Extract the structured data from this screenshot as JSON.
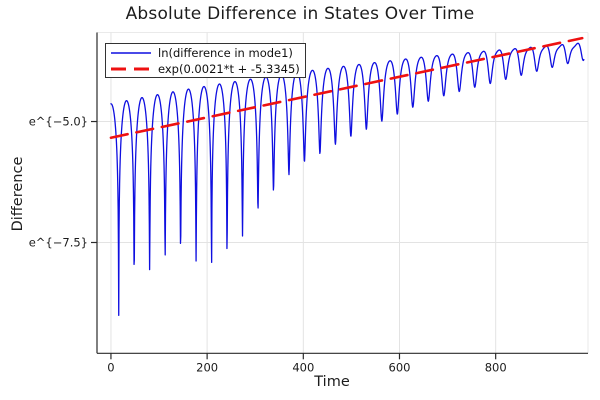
{
  "title": "Absolute Difference in States Over Time",
  "axes": {
    "xlabel": "Time",
    "ylabel": "Difference"
  },
  "legend": {
    "position": "top-left",
    "items": [
      {
        "label": "ln(difference in mode1)",
        "color": "#0f0fe0",
        "style": "solid"
      },
      {
        "label": "exp(0.0021*t + -5.3345)",
        "color": "#ee1111",
        "style": "dashed"
      }
    ]
  },
  "chart_data": {
    "type": "line",
    "title": "Absolute Difference in States Over Time",
    "xlabel": "Time",
    "ylabel": "Difference",
    "x_ticks": [
      0,
      200,
      400,
      600,
      800
    ],
    "y_ticks": [
      {
        "label": "e^{−5.0}",
        "value_ln": -5.0
      },
      {
        "label": "e^{−7.5}",
        "value_ln": -7.5
      }
    ],
    "xlim": [
      -29,
      992
    ],
    "ylim_ln": [
      -9.79,
      -3.16
    ],
    "grid": "on",
    "legend_position": "top-left",
    "series": [
      {
        "name": "ln(difference in mode1)",
        "color": "#0f0fe0",
        "style": "solid",
        "t_range": [
          0,
          984
        ],
        "sample_dt": 0.6,
        "model": {
          "note": "log-scale trace: v(t) = slope*t + intercept + peak_offset(t) + ln(sqrt(cos^2(omega*t)+eps(t)^2)) + ripple(t); ~30 oscillation arches whose sharp minima rise toward the peaks over time",
          "slope": 0.0021,
          "intercept": -5.3345,
          "peak_offset_base": 0.7,
          "peak_offset_quad": -8e-07,
          "omega": 0.0976,
          "ripple_amp": 0.22,
          "ripple_power": 1.5,
          "ripple_phase": -1.3,
          "ln_eps_anchors": [
            [
              0,
              -5.3
            ],
            [
              16,
              -5.04
            ],
            [
              48,
              -4.04
            ],
            [
              81,
              -3.62
            ],
            [
              113,
              -3.44
            ],
            [
              145,
              -3.39
            ],
            [
              177,
              -3.62
            ],
            [
              209,
              -4.03
            ],
            [
              241,
              -3.78
            ],
            [
              274,
              -3.27
            ],
            [
              306,
              -2.81
            ],
            [
              338,
              -2.46
            ],
            [
              370,
              -2.18
            ],
            [
              402,
              -1.97
            ],
            [
              435,
              -1.85
            ],
            [
              467,
              -1.71
            ],
            [
              499,
              -1.6
            ],
            [
              531,
              -1.5
            ],
            [
              563,
              -1.38
            ],
            [
              596,
              -1.28
            ],
            [
              628,
              -1.18
            ],
            [
              660,
              -1.1
            ],
            [
              692,
              -1.03
            ],
            [
              724,
              -0.98
            ],
            [
              756,
              -0.93
            ],
            [
              789,
              -0.89
            ],
            [
              821,
              -0.84
            ],
            [
              853,
              -0.79
            ],
            [
              885,
              -0.74
            ],
            [
              917,
              -0.69
            ],
            [
              950,
              -0.64
            ],
            [
              984,
              -0.6
            ]
          ]
        },
        "key_points_ln": {
          "start": [
            0,
            -4.55
          ],
          "first_minimum": [
            16,
            -9.6
          ],
          "mid_minimum": [
            274,
            -7.4
          ],
          "end": [
            984,
            -3.8
          ]
        }
      },
      {
        "name": "exp(0.0021*t + -5.3345)",
        "color": "#ee1111",
        "style": "dashed",
        "fit": {
          "slope": 0.0021,
          "intercept": -5.3345
        },
        "t_range": [
          0,
          980
        ]
      }
    ]
  },
  "colors": {
    "background": "#ffffff",
    "grid": "#e3e3e3",
    "frame": "#eaeaea",
    "spine": "#2b2b2b",
    "text": "#1c1c1c"
  }
}
